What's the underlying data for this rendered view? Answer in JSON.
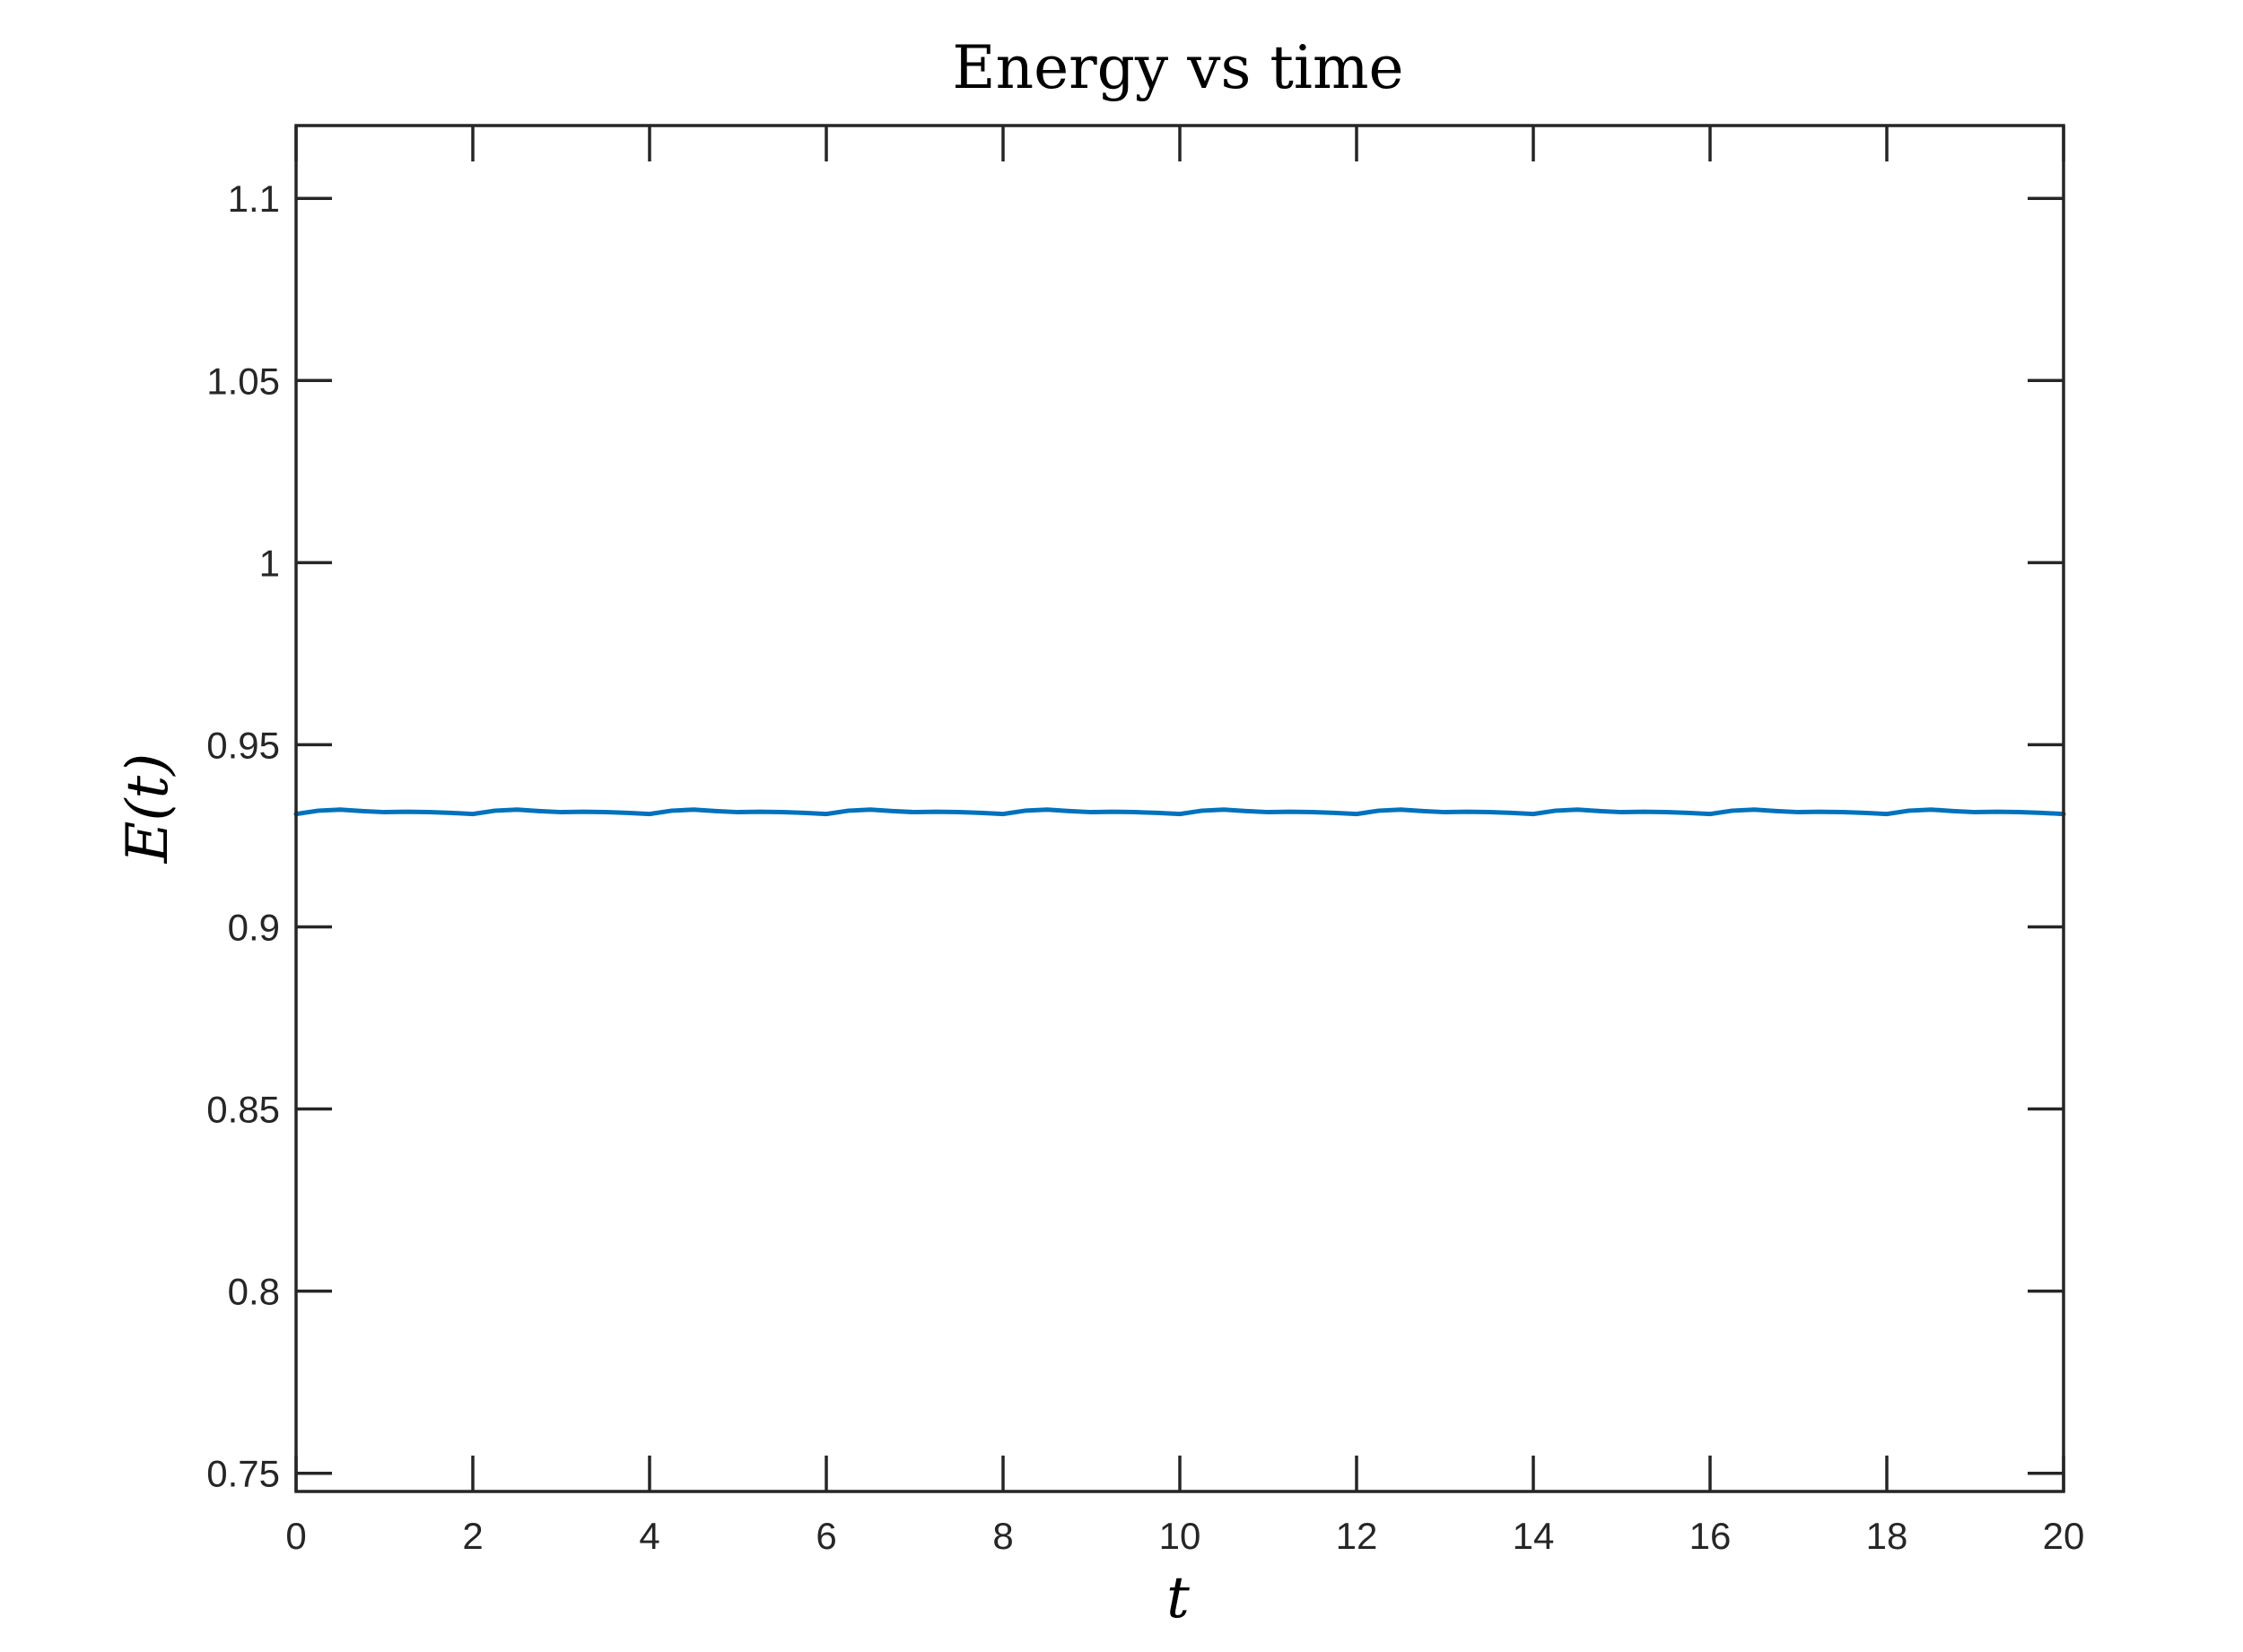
{
  "chart_data": {
    "type": "line",
    "title": "Energy vs time",
    "xlabel": "t",
    "ylabel": "E(t)",
    "xlim": [
      0,
      20
    ],
    "ylim": [
      0.745,
      1.12
    ],
    "xticks": [
      0,
      2,
      4,
      6,
      8,
      10,
      12,
      14,
      16,
      18,
      20
    ],
    "xtick_labels": [
      "0",
      "2",
      "4",
      "6",
      "8",
      "10",
      "12",
      "14",
      "16",
      "18",
      "20"
    ],
    "yticks": [
      0.75,
      0.8,
      0.85,
      0.9,
      0.95,
      1,
      1.05,
      1.1
    ],
    "ytick_labels": [
      "0.75",
      "0.8",
      "0.85",
      "0.9",
      "0.95",
      "1",
      "1.05",
      "1.1"
    ],
    "grid": false,
    "box": true,
    "series": [
      {
        "color": "#0072BD",
        "x": [
          0,
          0.25,
          0.5,
          0.75,
          1,
          1.25,
          1.5,
          1.75,
          2,
          2.25,
          2.5,
          2.75,
          3,
          3.25,
          3.5,
          3.75,
          4,
          4.25,
          4.5,
          4.75,
          5,
          5.25,
          5.5,
          5.75,
          6,
          6.25,
          6.5,
          6.75,
          7,
          7.25,
          7.5,
          7.75,
          8,
          8.25,
          8.5,
          8.75,
          9,
          9.25,
          9.5,
          9.75,
          10,
          10.25,
          10.5,
          10.75,
          11,
          11.25,
          11.5,
          11.75,
          12,
          12.25,
          12.5,
          12.75,
          13,
          13.25,
          13.5,
          13.75,
          14,
          14.25,
          14.5,
          14.75,
          15,
          15.25,
          15.5,
          15.75,
          16,
          16.25,
          16.5,
          16.75,
          17,
          17.25,
          17.5,
          17.75,
          18,
          18.25,
          18.5,
          18.75,
          19,
          19.25,
          19.5,
          19.75,
          20
        ],
        "values": [
          0.931,
          0.9319,
          0.9322,
          0.9318,
          0.9315,
          0.9316,
          0.9315,
          0.9313,
          0.931,
          0.9319,
          0.9322,
          0.9318,
          0.9315,
          0.9316,
          0.9315,
          0.9313,
          0.931,
          0.9319,
          0.9322,
          0.9318,
          0.9315,
          0.9316,
          0.9315,
          0.9313,
          0.931,
          0.9319,
          0.9322,
          0.9318,
          0.9315,
          0.9316,
          0.9315,
          0.9313,
          0.931,
          0.9319,
          0.9322,
          0.9318,
          0.9315,
          0.9316,
          0.9315,
          0.9313,
          0.931,
          0.9319,
          0.9322,
          0.9318,
          0.9315,
          0.9316,
          0.9315,
          0.9313,
          0.931,
          0.9319,
          0.9322,
          0.9318,
          0.9315,
          0.9316,
          0.9315,
          0.9313,
          0.931,
          0.9319,
          0.9322,
          0.9318,
          0.9315,
          0.9316,
          0.9315,
          0.9313,
          0.931,
          0.9319,
          0.9322,
          0.9318,
          0.9315,
          0.9316,
          0.9315,
          0.9313,
          0.931,
          0.9319,
          0.9322,
          0.9318,
          0.9315,
          0.9316,
          0.9315,
          0.9313,
          0.931
        ]
      }
    ]
  }
}
